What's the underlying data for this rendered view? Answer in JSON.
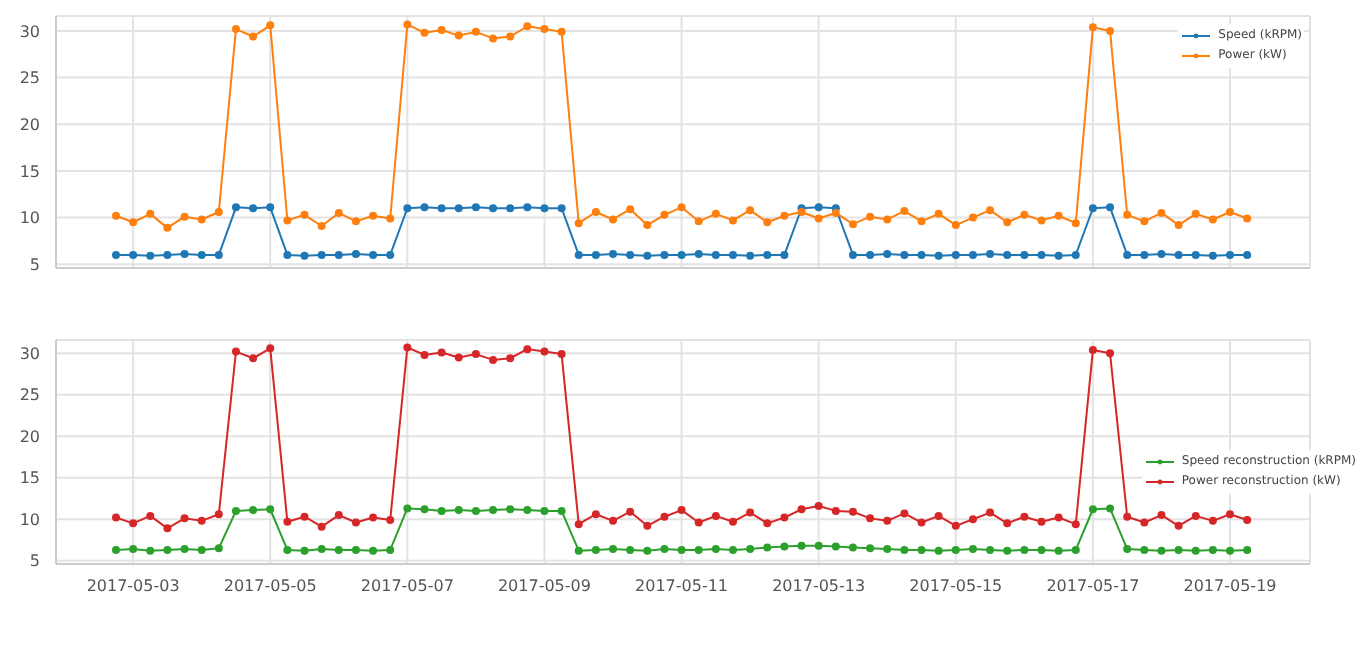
{
  "chart_data": [
    {
      "type": "line",
      "x": [
        "2017-05-02T18:00",
        "2017-05-03T00:00",
        "2017-05-03T06:00",
        "2017-05-03T12:00",
        "2017-05-03T18:00",
        "2017-05-04T00:00",
        "2017-05-04T06:00",
        "2017-05-04T12:00",
        "2017-05-04T18:00",
        "2017-05-05T00:00",
        "2017-05-05T06:00",
        "2017-05-05T12:00",
        "2017-05-05T18:00",
        "2017-05-06T00:00",
        "2017-05-06T06:00",
        "2017-05-06T12:00",
        "2017-05-06T18:00",
        "2017-05-07T00:00",
        "2017-05-07T06:00",
        "2017-05-07T12:00",
        "2017-05-07T18:00",
        "2017-05-08T00:00",
        "2017-05-08T06:00",
        "2017-05-08T12:00",
        "2017-05-08T18:00",
        "2017-05-09T00:00",
        "2017-05-09T06:00",
        "2017-05-09T12:00",
        "2017-05-09T18:00",
        "2017-05-10T00:00",
        "2017-05-10T06:00",
        "2017-05-10T12:00",
        "2017-05-10T18:00",
        "2017-05-11T00:00",
        "2017-05-11T06:00",
        "2017-05-11T12:00",
        "2017-05-11T18:00",
        "2017-05-12T00:00",
        "2017-05-12T06:00",
        "2017-05-12T12:00",
        "2017-05-12T18:00",
        "2017-05-13T00:00",
        "2017-05-13T06:00",
        "2017-05-13T12:00",
        "2017-05-13T18:00",
        "2017-05-14T00:00",
        "2017-05-14T06:00",
        "2017-05-14T12:00",
        "2017-05-14T18:00",
        "2017-05-15T00:00",
        "2017-05-15T06:00",
        "2017-05-15T12:00",
        "2017-05-15T18:00",
        "2017-05-16T00:00",
        "2017-05-16T06:00",
        "2017-05-16T12:00",
        "2017-05-16T18:00",
        "2017-05-17T00:00",
        "2017-05-17T06:00",
        "2017-05-17T12:00",
        "2017-05-17T18:00",
        "2017-05-18T00:00",
        "2017-05-18T06:00",
        "2017-05-18T12:00",
        "2017-05-18T18:00",
        "2017-05-19T00:00",
        "2017-05-19T06:00"
      ],
      "series": [
        {
          "name": "Speed (kRPM)",
          "color": "#1f77b4",
          "values": [
            6.0,
            6.0,
            5.9,
            6.0,
            6.1,
            6.0,
            6.0,
            11.1,
            11.0,
            11.1,
            6.0,
            5.9,
            6.0,
            6.0,
            6.1,
            6.0,
            6.0,
            11.0,
            11.1,
            11.0,
            11.0,
            11.1,
            11.0,
            11.0,
            11.1,
            11.0,
            11.0,
            6.0,
            6.0,
            6.1,
            6.0,
            5.9,
            6.0,
            6.0,
            6.1,
            6.0,
            6.0,
            5.9,
            6.0,
            6.0,
            11.0,
            11.1,
            11.0,
            6.0,
            6.0,
            6.1,
            6.0,
            6.0,
            5.9,
            6.0,
            6.0,
            6.1,
            6.0,
            6.0,
            6.0,
            5.9,
            6.0,
            11.0,
            11.1,
            6.0,
            6.0,
            6.1,
            6.0,
            6.0,
            5.9,
            6.0,
            6.0
          ]
        },
        {
          "name": "Power (kW)",
          "color": "#ff7f0e",
          "values": [
            10.2,
            9.5,
            10.4,
            8.9,
            10.1,
            9.8,
            10.6,
            30.2,
            29.4,
            30.6,
            9.7,
            10.3,
            9.1,
            10.5,
            9.6,
            10.2,
            9.9,
            30.7,
            29.8,
            30.1,
            29.5,
            29.9,
            29.2,
            29.4,
            30.5,
            30.2,
            29.9,
            9.4,
            10.6,
            9.8,
            10.9,
            9.2,
            10.3,
            11.1,
            9.6,
            10.4,
            9.7,
            10.8,
            9.5,
            10.2,
            10.6,
            9.9,
            10.5,
            9.3,
            10.1,
            9.8,
            10.7,
            9.6,
            10.4,
            9.2,
            10.0,
            10.8,
            9.5,
            10.3,
            9.7,
            10.2,
            9.4,
            30.4,
            30.0,
            10.3,
            9.6,
            10.5,
            9.2,
            10.4,
            9.8,
            10.6,
            9.9
          ]
        }
      ],
      "xlim": [
        "2017-05-01T21:00",
        "2017-05-20T04:00"
      ],
      "xticks": [
        "2017-05-03",
        "2017-05-05",
        "2017-05-07",
        "2017-05-09",
        "2017-05-11",
        "2017-05-13",
        "2017-05-15",
        "2017-05-17",
        "2017-05-19"
      ],
      "ylim": [
        4.6,
        31.6
      ],
      "yticks": [
        5,
        10,
        15,
        20,
        25,
        30
      ],
      "grid": true,
      "legend": "top right",
      "marker": "circle",
      "tick_labels": "y"
    },
    {
      "type": "line",
      "x": [
        "2017-05-02T18:00",
        "2017-05-03T00:00",
        "2017-05-03T06:00",
        "2017-05-03T12:00",
        "2017-05-03T18:00",
        "2017-05-04T00:00",
        "2017-05-04T06:00",
        "2017-05-04T12:00",
        "2017-05-04T18:00",
        "2017-05-05T00:00",
        "2017-05-05T06:00",
        "2017-05-05T12:00",
        "2017-05-05T18:00",
        "2017-05-06T00:00",
        "2017-05-06T06:00",
        "2017-05-06T12:00",
        "2017-05-06T18:00",
        "2017-05-07T00:00",
        "2017-05-07T06:00",
        "2017-05-07T12:00",
        "2017-05-07T18:00",
        "2017-05-08T00:00",
        "2017-05-08T06:00",
        "2017-05-08T12:00",
        "2017-05-08T18:00",
        "2017-05-09T00:00",
        "2017-05-09T06:00",
        "2017-05-09T12:00",
        "2017-05-09T18:00",
        "2017-05-10T00:00",
        "2017-05-10T06:00",
        "2017-05-10T12:00",
        "2017-05-10T18:00",
        "2017-05-11T00:00",
        "2017-05-11T06:00",
        "2017-05-11T12:00",
        "2017-05-11T18:00",
        "2017-05-12T00:00",
        "2017-05-12T06:00",
        "2017-05-12T12:00",
        "2017-05-12T18:00",
        "2017-05-13T00:00",
        "2017-05-13T06:00",
        "2017-05-13T12:00",
        "2017-05-13T18:00",
        "2017-05-14T00:00",
        "2017-05-14T06:00",
        "2017-05-14T12:00",
        "2017-05-14T18:00",
        "2017-05-15T00:00",
        "2017-05-15T06:00",
        "2017-05-15T12:00",
        "2017-05-15T18:00",
        "2017-05-16T00:00",
        "2017-05-16T06:00",
        "2017-05-16T12:00",
        "2017-05-16T18:00",
        "2017-05-17T00:00",
        "2017-05-17T06:00",
        "2017-05-17T12:00",
        "2017-05-17T18:00",
        "2017-05-18T00:00",
        "2017-05-18T06:00",
        "2017-05-18T12:00",
        "2017-05-18T18:00",
        "2017-05-19T00:00",
        "2017-05-19T06:00"
      ],
      "series": [
        {
          "name": "Speed reconstruction (kRPM)",
          "color": "#2ca02c",
          "values": [
            6.3,
            6.4,
            6.2,
            6.3,
            6.4,
            6.3,
            6.5,
            11.0,
            11.1,
            11.2,
            6.3,
            6.2,
            6.4,
            6.3,
            6.3,
            6.2,
            6.3,
            11.3,
            11.2,
            11.0,
            11.1,
            11.0,
            11.1,
            11.2,
            11.1,
            11.0,
            11.0,
            6.2,
            6.3,
            6.4,
            6.3,
            6.2,
            6.4,
            6.3,
            6.3,
            6.4,
            6.3,
            6.4,
            6.6,
            6.7,
            6.8,
            6.8,
            6.7,
            6.6,
            6.5,
            6.4,
            6.3,
            6.3,
            6.2,
            6.3,
            6.4,
            6.3,
            6.2,
            6.3,
            6.3,
            6.2,
            6.3,
            11.2,
            11.3,
            6.4,
            6.3,
            6.2,
            6.3,
            6.2,
            6.3,
            6.2,
            6.3
          ]
        },
        {
          "name": "Power reconstruction (kW)",
          "color": "#d62728",
          "values": [
            10.2,
            9.5,
            10.4,
            8.9,
            10.1,
            9.8,
            10.6,
            30.2,
            29.4,
            30.6,
            9.7,
            10.3,
            9.1,
            10.5,
            9.6,
            10.2,
            9.9,
            30.7,
            29.8,
            30.1,
            29.5,
            29.9,
            29.2,
            29.4,
            30.5,
            30.2,
            29.9,
            9.4,
            10.6,
            9.8,
            10.9,
            9.2,
            10.3,
            11.1,
            9.6,
            10.4,
            9.7,
            10.8,
            9.5,
            10.2,
            11.2,
            11.6,
            11.0,
            10.9,
            10.1,
            9.8,
            10.7,
            9.6,
            10.4,
            9.2,
            10.0,
            10.8,
            9.5,
            10.3,
            9.7,
            10.2,
            9.4,
            30.4,
            30.0,
            10.3,
            9.6,
            10.5,
            9.2,
            10.4,
            9.8,
            10.6,
            9.9
          ]
        }
      ],
      "xlim": [
        "2017-05-01T21:00",
        "2017-05-20T04:00"
      ],
      "xticks": [
        "2017-05-03",
        "2017-05-05",
        "2017-05-07",
        "2017-05-09",
        "2017-05-11",
        "2017-05-13",
        "2017-05-15",
        "2017-05-17",
        "2017-05-19"
      ],
      "ylim": [
        4.6,
        31.6
      ],
      "yticks": [
        5,
        10,
        15,
        20,
        25,
        30
      ],
      "grid": true,
      "legend": "right",
      "marker": "circle"
    }
  ]
}
